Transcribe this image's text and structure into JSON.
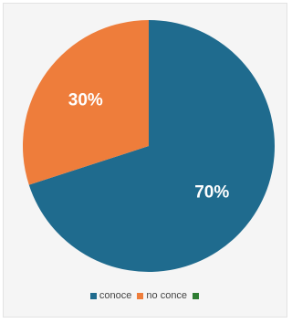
{
  "chart_data": {
    "type": "pie",
    "slices": [
      {
        "name": "conoce",
        "value": 70,
        "label": "70%",
        "color": "#1f6b8e"
      },
      {
        "name": "no conce",
        "value": 30,
        "label": "30%",
        "color": "#ee7d3b"
      },
      {
        "name": "",
        "value": 0,
        "label": "",
        "color": "#2e7d32"
      }
    ],
    "start_angle_deg": 0,
    "direction": "clockwise",
    "legend_position": "bottom"
  }
}
